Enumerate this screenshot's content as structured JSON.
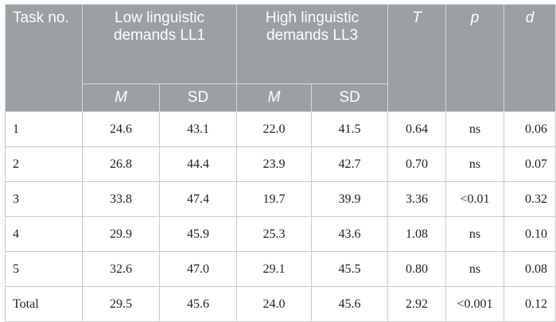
{
  "table": {
    "headers": {
      "task": "Task no.",
      "low_group": "Low linguistic demands LL1",
      "high_group": "High linguistic demands LL3",
      "t": "T",
      "p": "p",
      "d": "d",
      "m": "M",
      "sd": "SD"
    },
    "rows": [
      {
        "task": "1",
        "low_m": "24.6",
        "low_sd": "43.1",
        "high_m": "22.0",
        "high_sd": "41.5",
        "t": "0.64",
        "p": "ns",
        "d": "0.06"
      },
      {
        "task": "2",
        "low_m": "26.8",
        "low_sd": "44.4",
        "high_m": "23.9",
        "high_sd": "42.7",
        "t": "0.70",
        "p": "ns",
        "d": "0.07"
      },
      {
        "task": "3",
        "low_m": "33.8",
        "low_sd": "47.4",
        "high_m": "19.7",
        "high_sd": "39.9",
        "t": "3.36",
        "p": "<0.01",
        "d": "0.32"
      },
      {
        "task": "4",
        "low_m": "29.9",
        "low_sd": "45.9",
        "high_m": "25.3",
        "high_sd": "43.6",
        "t": "1.08",
        "p": "ns",
        "d": "0.10"
      },
      {
        "task": "5",
        "low_m": "32.6",
        "low_sd": "47.0",
        "high_m": "29.1",
        "high_sd": "45.5",
        "t": "0.80",
        "p": "ns",
        "d": "0.08"
      },
      {
        "task": "Total",
        "low_m": "29.5",
        "low_sd": "45.6",
        "high_m": "24.0",
        "high_sd": "45.6",
        "t": "2.92",
        "p": "<0.001",
        "d": "0.12"
      }
    ]
  },
  "colors": {
    "header_bg": "#9aa0a3",
    "header_text": "#ffffff",
    "border": "#c8cacb"
  }
}
